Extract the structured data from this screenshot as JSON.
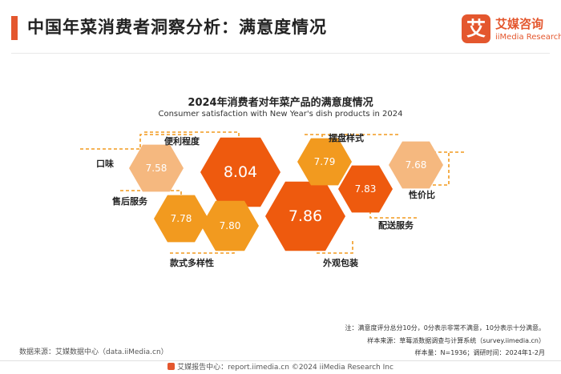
{
  "header": {
    "title": "中国年菜消费者洞察分析：满意度情况",
    "logo_mark": "艾",
    "logo_cn": "艾媒咨询",
    "logo_en": "iiMedia Research"
  },
  "chart_data": {
    "type": "bubble-hexagon",
    "title": "2024年消费者对年菜产品的满意度情况",
    "subtitle": "Consumer satisfaction with New Year's dish products in 2024",
    "categories": [
      "口味",
      "便利程度",
      "售后服务",
      "款式多样性",
      "外观包装",
      "摆盘样式",
      "配送服务",
      "性价比"
    ],
    "values": [
      7.58,
      8.04,
      7.78,
      7.8,
      7.86,
      7.79,
      7.83,
      7.68
    ]
  },
  "notes": {
    "note1": "注：满意度评分总分10分，0分表示非常不满意，10分表示十分满意。",
    "note2": "样本来源：草莓派数据调查与计算系统（survey.iimedia.cn）",
    "note3": "样本量：N=1936；调研时间：2024年1-2月"
  },
  "source": "数据来源：艾媒数据中心（data.iiMedia.cn）",
  "footer": "艾媒报告中心：report.iimedia.cn    ©2024  iiMedia Research  Inc",
  "colors": {
    "accent": "#e4572e",
    "hex_dark": "#ee5a0e",
    "hex_mid": "#f29a1f",
    "hex_light": "#f5b87f",
    "dash": "#f29a1f"
  }
}
